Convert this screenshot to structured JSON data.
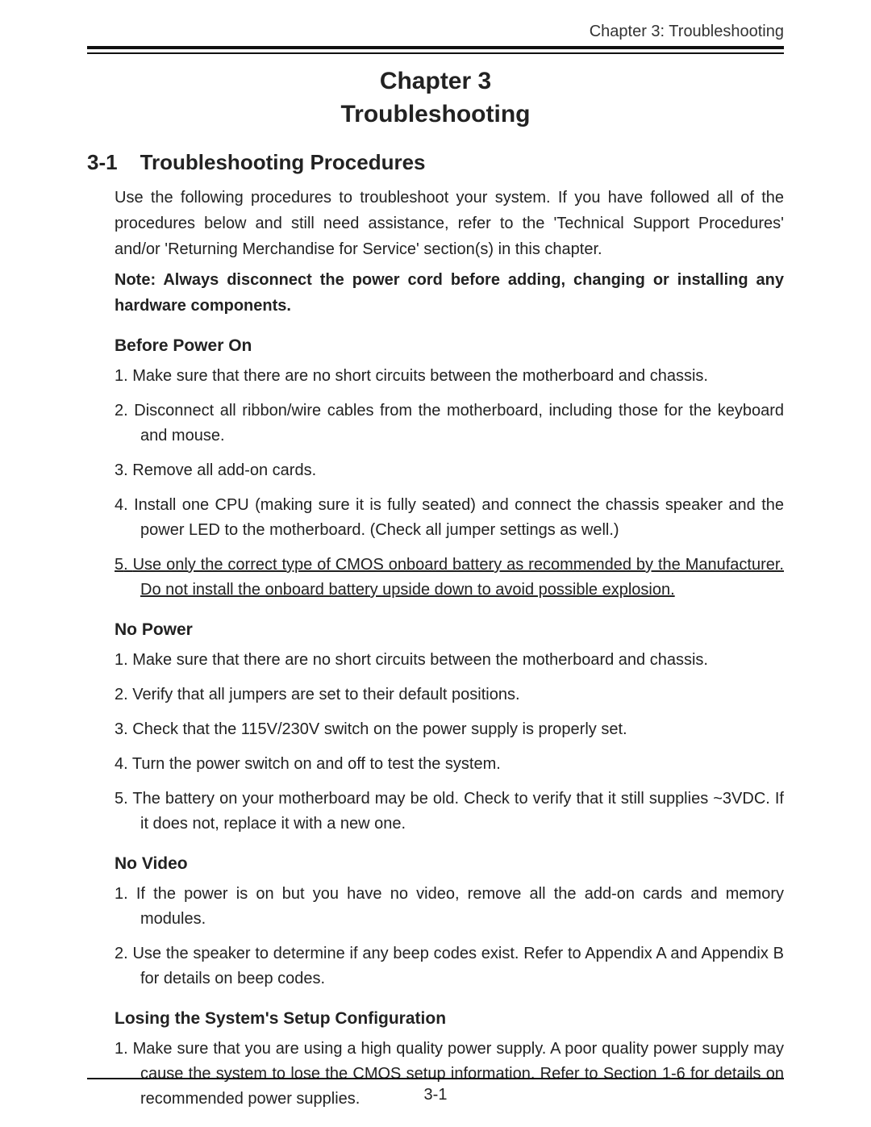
{
  "runningHeader": "Chapter 3: Troubleshooting",
  "chapter": {
    "line1": "Chapter 3",
    "line2": "Troubleshooting"
  },
  "section": {
    "number": "3-1",
    "title": "Troubleshooting Procedures",
    "intro": "Use the following procedures to troubleshoot your system.  If you have followed all of the procedures below and still need assistance, refer to the 'Technical Support Procedures' and/or 'Returning Merchandise for Service' section(s) in this chapter.",
    "note": "Note: Always disconnect the power cord before adding, changing or installing any hardware components."
  },
  "subsections": {
    "beforePowerOn": {
      "heading": "Before Power On",
      "items": {
        "i1": "Make sure that there are no short circuits between the motherboard and chassis.",
        "i2": "Disconnect all ribbon/wire cables from the motherboard, including those for the keyboard and mouse.",
        "i3": "Remove all add-on cards.",
        "i4": "Install one CPU (making sure it is fully seated) and connect the chassis speaker and the power LED to the motherboard.  (Check all jumper settings as well.)",
        "i5": "Use only the correct type of CMOS onboard battery as recommended by the Manufacturer. Do not install the onboard battery upside down to avoid possible explosion."
      }
    },
    "noPower": {
      "heading": "No Power",
      "items": {
        "i1": "Make sure that there are no short circuits between the motherboard and chassis.",
        "i2": "Verify that all jumpers are set to their default positions.",
        "i3": "Check that the 115V/230V switch on the power supply is properly set.",
        "i4": "Turn the power switch on and off to test the system.",
        "i5": "The battery on your motherboard may be old.  Check to verify that it still supplies ~3VDC.  If it does not, replace it with a new one."
      }
    },
    "noVideo": {
      "heading": "No Video",
      "items": {
        "i1": "If the power is on but you have no video, remove all the add-on cards and memory modules.",
        "i2": "Use the speaker to determine if any beep codes exist.  Refer to Appendix A and Appendix B  for details on beep codes."
      }
    },
    "losingSetup": {
      "heading": "Losing the System's Setup Configuration",
      "items": {
        "i1": "Make sure that you are using a high quality power supply.  A poor quality power supply may cause the system to lose the CMOS setup information.  Refer to Section 1-6 for details on recommended power supplies."
      }
    }
  },
  "pageNumber": "3-1"
}
